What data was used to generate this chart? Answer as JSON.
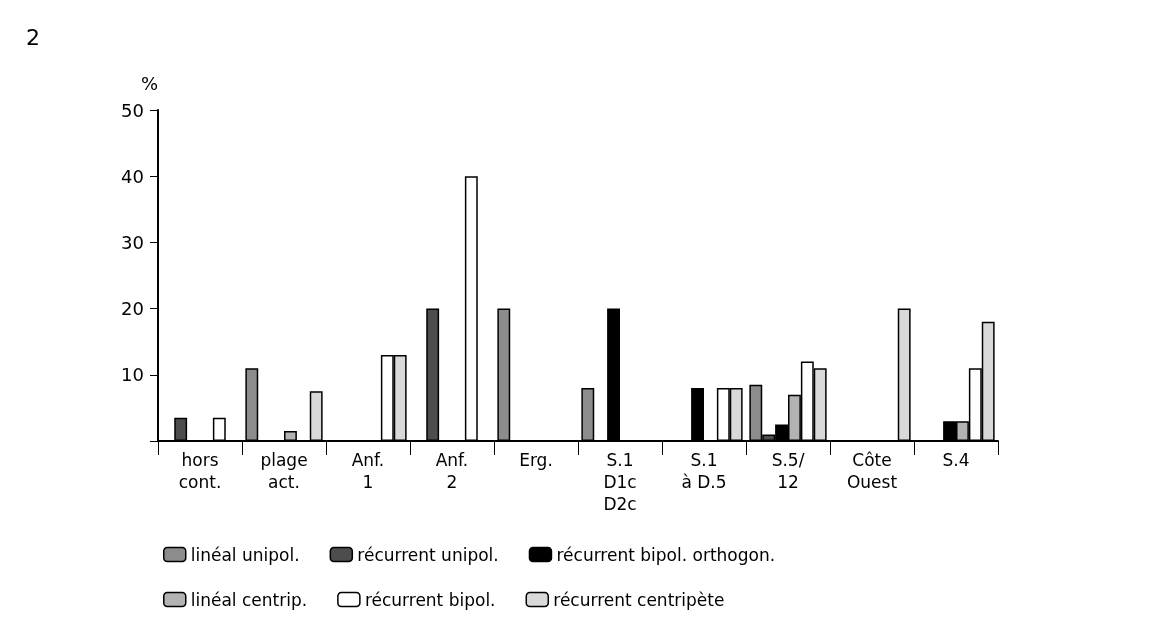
{
  "chart_data": {
    "type": "bar",
    "ylabel": "%",
    "annotations": [
      "2"
    ],
    "categories": [
      "hors\ncont.",
      "plage\nact.",
      "Anf.\n1",
      "Anf.\n2",
      "Erg.",
      "S.1\nD1c\nD2c",
      "S.1\nà D.5",
      "S.5/\n12",
      "Côte\nOuest",
      "S.4"
    ],
    "series": [
      {
        "name": "linéal unipol.",
        "color": "#8c8c8c",
        "values": [
          null,
          11,
          null,
          null,
          20,
          8,
          null,
          8.5,
          null,
          null
        ]
      },
      {
        "name": "récurrent unipol.",
        "color": "#4d4d4d",
        "values": [
          3.5,
          null,
          null,
          20,
          null,
          null,
          null,
          1,
          null,
          null
        ]
      },
      {
        "name": "récurrent bipol. orthogon.",
        "color": "#000000",
        "values": [
          null,
          null,
          null,
          null,
          null,
          20,
          8,
          2.5,
          null,
          3
        ]
      },
      {
        "name": "linéal centrip.",
        "color": "#b3b3b3",
        "values": [
          null,
          1.5,
          null,
          null,
          null,
          null,
          null,
          7,
          null,
          3
        ]
      },
      {
        "name": "récurrent bipol.",
        "color": "#ffffff",
        "values": [
          3.5,
          null,
          13,
          40,
          null,
          null,
          8,
          12,
          null,
          11
        ]
      },
      {
        "name": "récurrent centripète",
        "color": "#d9d9d9",
        "values": [
          null,
          7.5,
          13,
          null,
          null,
          null,
          8,
          11,
          20,
          18
        ]
      }
    ],
    "ylim": [
      0,
      50
    ],
    "yticks": [
      {
        "value": 0,
        "label": null
      },
      10,
      20,
      30,
      40,
      50
    ],
    "grid": false,
    "legend": "bottom"
  }
}
